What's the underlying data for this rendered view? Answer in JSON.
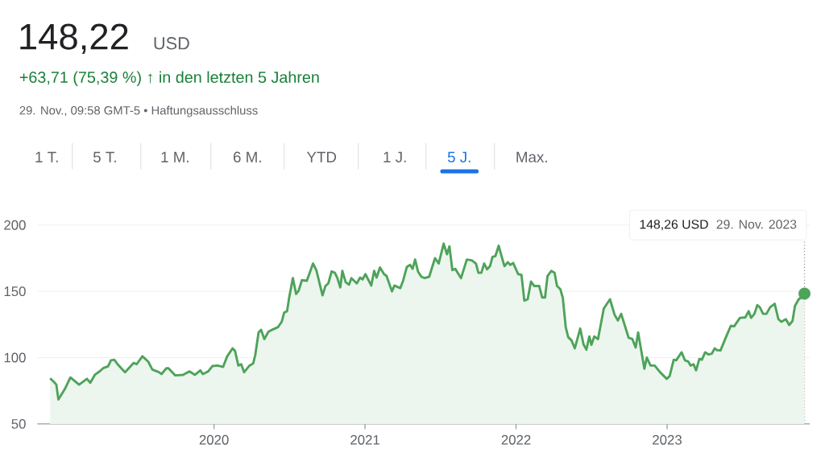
{
  "chart_data": {
    "type": "area",
    "title": "148,22",
    "subtitle": "+63,71 (75,39 %) ↑ in den letzten 5 Jahren",
    "annotations": [
      "USD",
      "29. Nov., 09:58 GMT-5 • Haftungsausschluss",
      "1 T.",
      "5 T.",
      "1 M.",
      "6 M.",
      "YTD",
      "1 J.",
      "5 J.",
      "Max.",
      "148,26 USD",
      "29. Nov. 2023"
    ],
    "xlim": [
      "2018-10-31",
      "2023-12-12"
    ],
    "ylim": [
      50,
      200
    ],
    "xticks": [
      {
        "value": "2020-01-01",
        "label": "2020"
      },
      {
        "value": "2021-01-01",
        "label": "2021"
      },
      {
        "value": "2022-01-01",
        "label": "2022"
      },
      {
        "value": "2023-01-01",
        "label": "2023"
      }
    ],
    "yticks": [
      50,
      100,
      150,
      200
    ],
    "grid": "y",
    "ref_lines": [
      {
        "axis": "x",
        "value": "2023-11-29",
        "color": "#9e9e9e",
        "line_style": "dotted"
      }
    ],
    "series": [
      {
        "color": "#4ea35a",
        "marker": "none",
        "x": [
          "2018-12-01",
          "2018-12-12",
          "2018-12-16",
          "2018-12-21",
          "2019-01-05",
          "2019-01-19",
          "2019-02-09",
          "2019-02-28",
          "2019-03-08",
          "2019-03-19",
          "2019-04-01",
          "2019-04-08",
          "2019-04-20",
          "2019-04-27",
          "2019-05-05",
          "2019-05-13",
          "2019-05-31",
          "2019-06-21",
          "2019-06-28",
          "2019-07-12",
          "2019-07-26",
          "2019-08-05",
          "2019-08-21",
          "2019-08-27",
          "2019-09-08",
          "2019-09-13",
          "2019-09-29",
          "2019-10-18",
          "2019-11-03",
          "2019-11-16",
          "2019-11-29",
          "2019-12-05",
          "2019-12-18",
          "2019-12-28",
          "2020-01-10",
          "2020-01-23",
          "2020-02-02",
          "2020-02-15",
          "2020-02-21",
          "2020-02-29",
          "2020-03-07",
          "2020-03-14",
          "2020-03-27",
          "2020-04-05",
          "2020-04-10",
          "2020-04-18",
          "2020-04-24",
          "2020-05-02",
          "2020-05-12",
          "2020-05-21",
          "2020-06-04",
          "2020-06-13",
          "2020-06-19",
          "2020-06-26",
          "2020-07-01",
          "2020-07-10",
          "2020-07-18",
          "2020-07-24",
          "2020-08-01",
          "2020-08-13",
          "2020-08-28",
          "2020-09-05",
          "2020-09-20",
          "2020-09-27",
          "2020-10-04",
          "2020-10-12",
          "2020-10-20",
          "2020-10-26",
          "2020-11-02",
          "2020-11-07",
          "2020-11-15",
          "2020-11-23",
          "2020-11-29",
          "2020-12-12",
          "2020-12-20",
          "2020-12-26",
          "2021-01-02",
          "2021-01-16",
          "2021-01-23",
          "2021-01-29",
          "2021-02-06",
          "2021-02-16",
          "2021-02-22",
          "2021-03-07",
          "2021-03-13",
          "2021-03-27",
          "2021-04-03",
          "2021-04-12",
          "2021-04-20",
          "2021-04-26",
          "2021-05-02",
          "2021-05-09",
          "2021-05-17",
          "2021-05-25",
          "2021-06-05",
          "2021-06-19",
          "2021-06-28",
          "2021-07-10",
          "2021-07-18",
          "2021-07-24",
          "2021-07-31",
          "2021-08-07",
          "2021-08-21",
          "2021-09-04",
          "2021-09-16",
          "2021-09-26",
          "2021-10-02",
          "2021-10-09",
          "2021-10-16",
          "2021-10-23",
          "2021-10-30",
          "2021-11-05",
          "2021-11-12",
          "2021-11-20",
          "2021-11-27",
          "2021-12-04",
          "2021-12-12",
          "2021-12-18",
          "2021-12-25",
          "2022-01-06",
          "2022-01-14",
          "2022-01-21",
          "2022-01-29",
          "2022-02-06",
          "2022-02-14",
          "2022-02-26",
          "2022-03-05",
          "2022-03-12",
          "2022-03-18",
          "2022-03-27",
          "2022-04-04",
          "2022-04-10",
          "2022-04-18",
          "2022-04-24",
          "2022-05-01",
          "2022-05-07",
          "2022-05-15",
          "2022-05-23",
          "2022-06-05",
          "2022-06-13",
          "2022-06-20",
          "2022-06-27",
          "2022-07-02",
          "2022-07-09",
          "2022-07-18",
          "2022-08-01",
          "2022-08-16",
          "2022-08-27",
          "2022-09-04",
          "2022-09-12",
          "2022-09-30",
          "2022-10-09",
          "2022-10-17",
          "2022-10-23",
          "2022-11-07",
          "2022-11-13",
          "2022-11-22",
          "2022-12-02",
          "2022-12-15",
          "2022-12-31",
          "2023-01-07",
          "2023-01-17",
          "2023-01-23",
          "2023-02-05",
          "2023-02-13",
          "2023-02-21",
          "2023-02-27",
          "2023-03-06",
          "2023-03-12",
          "2023-03-20",
          "2023-03-26",
          "2023-04-03",
          "2023-04-11",
          "2023-04-19",
          "2023-04-26",
          "2023-05-02",
          "2023-05-10",
          "2023-05-24",
          "2023-06-04",
          "2023-06-12",
          "2023-06-26",
          "2023-07-09",
          "2023-07-17",
          "2023-07-23",
          "2023-07-31",
          "2023-08-07",
          "2023-08-13",
          "2023-08-21",
          "2023-08-29",
          "2023-09-07",
          "2023-09-18",
          "2023-09-27",
          "2023-10-04",
          "2023-10-15",
          "2023-10-23",
          "2023-10-31",
          "2023-11-06",
          "2023-11-15",
          "2023-11-24",
          "2023-11-29"
        ],
        "values": [
          84.4,
          81,
          79.6,
          68.4,
          76,
          85,
          79.6,
          84,
          81,
          87,
          90,
          92,
          93.4,
          98,
          98.4,
          95,
          89,
          96,
          95,
          101,
          97,
          91,
          89,
          87.6,
          92,
          92,
          86.6,
          87,
          89.6,
          87,
          90.4,
          87.6,
          89.6,
          93.6,
          94,
          93,
          101,
          107,
          105,
          94,
          95,
          89,
          94,
          95.6,
          102,
          119,
          121,
          114,
          119.6,
          121,
          123,
          127,
          134,
          135,
          145,
          160,
          148,
          150.4,
          158.4,
          158,
          171,
          166,
          147,
          154,
          156,
          165,
          164,
          160,
          153,
          165.4,
          157,
          155,
          160,
          156,
          160.4,
          159,
          163,
          154.4,
          165.4,
          160.4,
          168,
          163,
          161.6,
          150,
          154.4,
          152.4,
          158,
          168.4,
          170,
          167,
          174,
          165,
          161,
          160,
          161,
          175,
          171,
          186,
          178,
          184,
          166,
          167,
          160,
          174,
          173.4,
          171,
          164,
          164,
          171,
          166.6,
          169,
          176,
          176.6,
          184.4,
          176.4,
          169,
          172,
          170,
          171.4,
          163,
          162.4,
          143,
          144,
          157.4,
          154,
          154,
          145.4,
          145.4,
          161.6,
          165.4,
          164,
          154,
          151.6,
          145,
          123,
          115.4,
          113,
          107,
          122,
          110,
          106,
          116,
          109.6,
          116,
          114,
          137,
          144,
          132.4,
          128,
          133,
          115,
          114,
          107.6,
          119,
          91.6,
          100,
          94,
          94,
          89,
          84,
          86,
          98.4,
          98,
          104,
          98,
          97,
          94,
          95,
          90.4,
          99,
          98.4,
          104,
          102.4,
          103,
          107,
          105.6,
          105.4,
          116,
          124,
          123.6,
          130,
          130.4,
          135,
          130,
          133,
          139.6,
          138,
          133,
          133,
          138,
          140.6,
          129,
          127,
          129,
          124.6,
          127.6,
          139,
          144,
          146,
          148.26
        ]
      },
      {
        "type": "scatter",
        "color": "#4ea35a",
        "marker": "circle",
        "x": [
          "2023-11-29"
        ],
        "values": [
          148.26
        ]
      }
    ]
  }
}
